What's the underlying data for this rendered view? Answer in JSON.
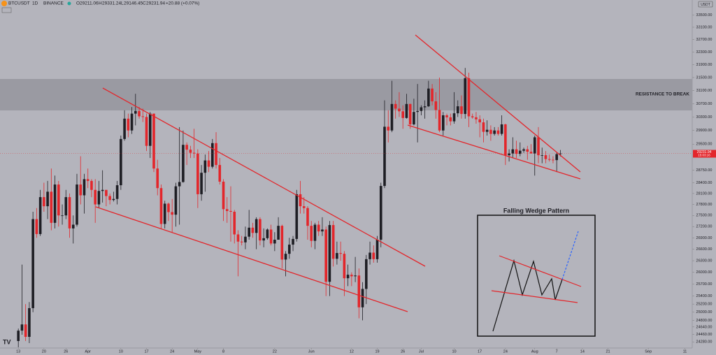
{
  "header": {
    "symbol": "BTCUSDT",
    "interval": "1D",
    "exchange": "BINANCE",
    "labels": [
      "O",
      "H",
      "L",
      "C"
    ],
    "values": [
      "29211.06",
      "29331.24",
      "29146.45",
      "29231.94"
    ],
    "change": "+20.88 (+0.07%)"
  },
  "price_tag": {
    "price": "29231.94",
    "countdown": "15:03:16"
  },
  "chart_data": {
    "type": "candlestick",
    "y_label": "USDT",
    "annotation": "RESISTANCE TO BREAK",
    "inset_title": "Falling Wedge Pattern",
    "log_scale": true,
    "up_color": "#1e1e24",
    "down_color": "#e3262b",
    "xlim": [
      -5,
      184
    ],
    "ylim": [
      24100,
      34000
    ],
    "xticks": [
      {
        "value": 0,
        "label": "13"
      },
      {
        "value": 7,
        "label": "20"
      },
      {
        "value": 13,
        "label": "26"
      },
      {
        "value": 19,
        "label": "Apr"
      },
      {
        "value": 28,
        "label": "10"
      },
      {
        "value": 35,
        "label": "17"
      },
      {
        "value": 42,
        "label": "24"
      },
      {
        "value": 49,
        "label": "May"
      },
      {
        "value": 56,
        "label": "8"
      },
      {
        "value": 70,
        "label": "22"
      },
      {
        "value": 80,
        "label": "Jun"
      },
      {
        "value": 91,
        "label": "12"
      },
      {
        "value": 98,
        "label": "19"
      },
      {
        "value": 105,
        "label": "26"
      },
      {
        "value": 110,
        "label": "Jul"
      },
      {
        "value": 119,
        "label": "10"
      },
      {
        "value": 126,
        "label": "17"
      },
      {
        "value": 133,
        "label": "24"
      },
      {
        "value": 141,
        "label": "Aug"
      },
      {
        "value": 147,
        "label": "7"
      },
      {
        "value": 154,
        "label": "14"
      },
      {
        "value": 161,
        "label": "21"
      },
      {
        "value": 172,
        "label": "Sep"
      },
      {
        "value": 182,
        "label": "11"
      }
    ],
    "yticks": [
      {
        "value": 33500,
        "label": "33500.00"
      },
      {
        "value": 33100,
        "label": "33100.00"
      },
      {
        "value": 32700,
        "label": "32700.00"
      },
      {
        "value": 32300,
        "label": "32300.00"
      },
      {
        "value": 31900,
        "label": "31900.00"
      },
      {
        "value": 31500,
        "label": "31500.00"
      },
      {
        "value": 31100,
        "label": "31100.00"
      },
      {
        "value": 30700,
        "label": "30700.00"
      },
      {
        "value": 30300,
        "label": "30300.00"
      },
      {
        "value": 29900,
        "label": "29900.00"
      },
      {
        "value": 29500,
        "label": "29500.00"
      },
      {
        "value": 28750,
        "label": "28750.00"
      },
      {
        "value": 28400,
        "label": "28400.00"
      },
      {
        "value": 28100,
        "label": "28100.00"
      },
      {
        "value": 27800,
        "label": "27800.00"
      },
      {
        "value": 27500,
        "label": "27500.00"
      },
      {
        "value": 27200,
        "label": "27200.00"
      },
      {
        "value": 26900,
        "label": "26900.00"
      },
      {
        "value": 26600,
        "label": "26600.00"
      },
      {
        "value": 26300,
        "label": "26300.00"
      },
      {
        "value": 26000,
        "label": "26000.00"
      },
      {
        "value": 25700,
        "label": "25700.00"
      },
      {
        "value": 25400,
        "label": "25400.00"
      },
      {
        "value": 25200,
        "label": "25200.00"
      },
      {
        "value": 25000,
        "label": "25000.00"
      },
      {
        "value": 24800,
        "label": "24800.00"
      },
      {
        "value": 24640,
        "label": "24640.00"
      },
      {
        "value": 24460,
        "label": "24460.00"
      },
      {
        "value": 24280,
        "label": "24280.00"
      }
    ],
    "x": [
      0,
      1,
      2,
      3,
      4,
      5,
      6,
      7,
      8,
      9,
      10,
      11,
      12,
      13,
      14,
      15,
      16,
      17,
      18,
      19,
      20,
      21,
      22,
      23,
      24,
      25,
      26,
      27,
      28,
      29,
      30,
      31,
      32,
      33,
      34,
      35,
      36,
      37,
      38,
      39,
      40,
      41,
      42,
      43,
      44,
      45,
      46,
      47,
      48,
      49,
      50,
      51,
      52,
      53,
      54,
      55,
      56,
      57,
      58,
      59,
      60,
      61,
      62,
      63,
      64,
      65,
      66,
      67,
      68,
      69,
      70,
      71,
      72,
      73,
      74,
      75,
      76,
      77,
      78,
      79,
      80,
      81,
      82,
      83,
      84,
      85,
      86,
      87,
      88,
      89,
      90,
      91,
      92,
      93,
      94,
      95,
      96,
      97,
      98,
      99,
      100,
      101,
      102,
      103,
      104,
      105,
      106,
      107,
      108,
      109,
      110,
      111,
      112,
      113,
      114,
      115,
      116,
      117,
      118,
      119,
      120,
      121,
      122,
      123,
      124,
      125,
      126,
      127,
      128,
      129,
      130,
      131,
      132,
      133,
      134,
      135,
      136,
      137,
      138,
      139,
      140,
      141,
      142,
      143,
      144,
      145,
      146,
      147,
      148
    ],
    "ohlc": [
      [
        24300,
        24600,
        24150,
        24550
      ],
      [
        24550,
        26200,
        24450,
        24700
      ],
      [
        24700,
        25200,
        24300,
        24400
      ],
      [
        24400,
        25250,
        24250,
        25100
      ],
      [
        25100,
        27600,
        25000,
        27400
      ],
      [
        27400,
        27700,
        26900,
        27000
      ],
      [
        27000,
        28200,
        26950,
        28000
      ],
      [
        28000,
        28400,
        27600,
        27750
      ],
      [
        27750,
        28450,
        27400,
        28150
      ],
      [
        28150,
        28800,
        27100,
        27300
      ],
      [
        27300,
        28600,
        27150,
        28350
      ],
      [
        28350,
        28450,
        27200,
        27500
      ],
      [
        27500,
        27800,
        27250,
        27500
      ],
      [
        27500,
        28200,
        27400,
        28000
      ],
      [
        28000,
        28100,
        26900,
        27150
      ],
      [
        27150,
        27500,
        26750,
        27250
      ],
      [
        27250,
        28650,
        27200,
        28350
      ],
      [
        28350,
        29150,
        27800,
        28050
      ],
      [
        28050,
        28650,
        27550,
        28500
      ],
      [
        28500,
        28800,
        28250,
        28450
      ],
      [
        28450,
        28500,
        28000,
        28200
      ],
      [
        28200,
        28500,
        27300,
        27800
      ],
      [
        27800,
        28450,
        27700,
        28170
      ],
      [
        28170,
        28750,
        27850,
        28200
      ],
      [
        28200,
        28200,
        27750,
        28030
      ],
      [
        28030,
        28100,
        27800,
        27920
      ],
      [
        27920,
        28150,
        27880,
        27950
      ],
      [
        27950,
        28450,
        27800,
        28330
      ],
      [
        28330,
        29750,
        28200,
        29650
      ],
      [
        29650,
        30500,
        29600,
        30250
      ],
      [
        30250,
        30400,
        29700,
        29900
      ],
      [
        29900,
        30600,
        29800,
        30400
      ],
      [
        30400,
        31000,
        30050,
        30480
      ],
      [
        30480,
        30600,
        30250,
        30320
      ],
      [
        30320,
        30550,
        30150,
        30300
      ],
      [
        30300,
        30400,
        29300,
        29450
      ],
      [
        29450,
        30450,
        29100,
        30400
      ],
      [
        30400,
        30400,
        28700,
        28800
      ],
      [
        28800,
        29050,
        28050,
        28250
      ],
      [
        28250,
        28350,
        27150,
        27270
      ],
      [
        27270,
        27900,
        27150,
        27820
      ],
      [
        27820,
        27850,
        27350,
        27590
      ],
      [
        27590,
        27950,
        27050,
        27520
      ],
      [
        27520,
        28400,
        27200,
        28300
      ],
      [
        28300,
        30000,
        27250,
        28420
      ],
      [
        28420,
        29900,
        28400,
        29480
      ],
      [
        29480,
        29550,
        28900,
        29340
      ],
      [
        29340,
        29450,
        29100,
        29250
      ],
      [
        29250,
        29950,
        29100,
        29230
      ],
      [
        29230,
        29350,
        27700,
        28080
      ],
      [
        28080,
        28900,
        27900,
        28680
      ],
      [
        28680,
        29200,
        28150,
        29030
      ],
      [
        29030,
        29300,
        28700,
        28850
      ],
      [
        28850,
        29650,
        28800,
        29530
      ],
      [
        29530,
        29850,
        28800,
        28900
      ],
      [
        28900,
        29100,
        28350,
        28430
      ],
      [
        28430,
        28500,
        27350,
        27670
      ],
      [
        27670,
        28000,
        27300,
        27620
      ],
      [
        27620,
        28300,
        26800,
        27600
      ],
      [
        27600,
        27650,
        26750,
        26990
      ],
      [
        26990,
        27100,
        25900,
        26800
      ],
      [
        26800,
        26950,
        26700,
        26780
      ],
      [
        26780,
        27200,
        26600,
        26930
      ],
      [
        26930,
        27650,
        26850,
        27170
      ],
      [
        27170,
        27300,
        26900,
        27030
      ],
      [
        27030,
        27450,
        26600,
        27400
      ],
      [
        27400,
        27450,
        26700,
        26830
      ],
      [
        26830,
        27150,
        26650,
        26890
      ],
      [
        26890,
        27150,
        26850,
        27120
      ],
      [
        27120,
        27250,
        26700,
        26750
      ],
      [
        26750,
        27050,
        26550,
        26850
      ],
      [
        26850,
        27450,
        26850,
        27220
      ],
      [
        27220,
        27250,
        26100,
        26330
      ],
      [
        26330,
        26550,
        25900,
        26480
      ],
      [
        26480,
        26900,
        26350,
        26720
      ],
      [
        26720,
        26950,
        26550,
        26870
      ],
      [
        26870,
        28200,
        26800,
        28080
      ],
      [
        28080,
        28450,
        27550,
        27750
      ],
      [
        27750,
        28000,
        27550,
        27700
      ],
      [
        27700,
        27750,
        26850,
        27220
      ],
      [
        27220,
        27350,
        26650,
        26820
      ],
      [
        26820,
        27300,
        26600,
        27250
      ],
      [
        27250,
        27350,
        26950,
        27070
      ],
      [
        27070,
        27450,
        26950,
        27120
      ],
      [
        27120,
        27200,
        25400,
        25760
      ],
      [
        25760,
        27350,
        25400,
        27240
      ],
      [
        27240,
        27350,
        26150,
        26350
      ],
      [
        26350,
        26800,
        26200,
        26500
      ],
      [
        26500,
        26800,
        26300,
        26480
      ],
      [
        26480,
        26550,
        25400,
        25850
      ],
      [
        25850,
        26200,
        25650,
        25940
      ],
      [
        25940,
        26000,
        25650,
        25900
      ],
      [
        25900,
        26400,
        25750,
        25920
      ],
      [
        25920,
        26100,
        24850,
        25120
      ],
      [
        25120,
        25750,
        24800,
        25580
      ],
      [
        25580,
        26450,
        25200,
        26340
      ],
      [
        26340,
        26800,
        26200,
        26510
      ],
      [
        26510,
        26700,
        26250,
        26340
      ],
      [
        26340,
        26950,
        26250,
        26850
      ],
      [
        26850,
        28400,
        26650,
        28310
      ],
      [
        28310,
        30800,
        28250,
        30010
      ],
      [
        30010,
        30500,
        29550,
        29900
      ],
      [
        29900,
        31400,
        29850,
        30690
      ],
      [
        30690,
        30800,
        30250,
        30550
      ],
      [
        30550,
        31050,
        30300,
        30470
      ],
      [
        30470,
        30650,
        29950,
        30270
      ],
      [
        30270,
        31000,
        30250,
        30690
      ],
      [
        30690,
        30700,
        29950,
        30080
      ],
      [
        30080,
        30850,
        30050,
        30450
      ],
      [
        30450,
        31300,
        29550,
        30480
      ],
      [
        30480,
        30650,
        30350,
        30590
      ],
      [
        30590,
        30800,
        30250,
        30620
      ],
      [
        30620,
        31400,
        30600,
        31160
      ],
      [
        31160,
        31300,
        30650,
        30770
      ],
      [
        30770,
        31050,
        30250,
        30510
      ],
      [
        30510,
        31500,
        29850,
        29900
      ],
      [
        29900,
        30450,
        29750,
        30350
      ],
      [
        30350,
        30400,
        30050,
        30290
      ],
      [
        30290,
        30400,
        30050,
        30170
      ],
      [
        30170,
        31050,
        30100,
        30410
      ],
      [
        30410,
        30800,
        30300,
        30620
      ],
      [
        30620,
        30950,
        30250,
        30390
      ],
      [
        30390,
        31800,
        30250,
        31480
      ],
      [
        31480,
        31650,
        30000,
        30320
      ],
      [
        30320,
        30400,
        30250,
        30290
      ],
      [
        30290,
        30450,
        30100,
        30230
      ],
      [
        30230,
        30350,
        29700,
        30140
      ],
      [
        30140,
        30250,
        29550,
        29860
      ],
      [
        29860,
        30200,
        29750,
        29920
      ],
      [
        29920,
        30050,
        29600,
        29800
      ],
      [
        29800,
        30000,
        29750,
        29900
      ],
      [
        29900,
        30000,
        29750,
        29800
      ],
      [
        29800,
        30350,
        29750,
        30080
      ],
      [
        30080,
        30100,
        28900,
        29180
      ],
      [
        29180,
        29350,
        29000,
        29230
      ],
      [
        29230,
        29700,
        29100,
        29350
      ],
      [
        29350,
        29600,
        29100,
        29220
      ],
      [
        29220,
        29550,
        29150,
        29310
      ],
      [
        29310,
        29400,
        29250,
        29350
      ],
      [
        29350,
        29450,
        29050,
        29280
      ],
      [
        29280,
        29500,
        29250,
        29230
      ],
      [
        29230,
        29750,
        28600,
        29700
      ],
      [
        29700,
        30000,
        28950,
        29180
      ],
      [
        29180,
        29400,
        28950,
        29180
      ],
      [
        29180,
        29300,
        28950,
        29070
      ],
      [
        29070,
        29200,
        29000,
        29050
      ],
      [
        29050,
        29150,
        28950,
        29040
      ],
      [
        29040,
        29250,
        28700,
        29211.06
      ],
      [
        29211.06,
        29331.24,
        29146.45,
        29231.94
      ]
    ]
  }
}
